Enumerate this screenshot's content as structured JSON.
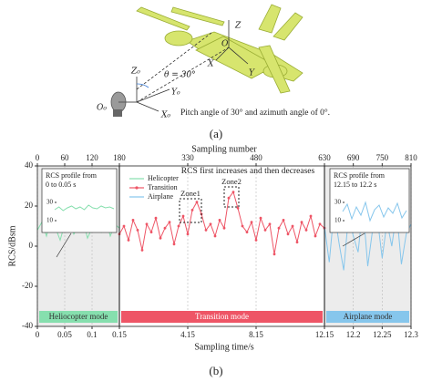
{
  "figure_a": {
    "labels": {
      "z": "Z",
      "o": "O",
      "x": "X",
      "y": "Y",
      "z0": "Z₀",
      "theta": "θ = 30°",
      "y0": "Y₀",
      "x0": "X₀",
      "o0": "O₀"
    },
    "description": "Pitch angle of 30° and azimuth angle of 0°.",
    "caption": "(a)"
  },
  "chart_data": {
    "type": "line",
    "xlabel": "Sampling number",
    "x2label": "Sampling time/s",
    "ylabel": "RCS/dBsm",
    "xlim": [
      0,
      810
    ],
    "xticks": [
      0,
      60,
      120,
      180,
      330,
      480,
      630,
      690,
      750,
      810
    ],
    "x2lim": [
      0,
      12.3
    ],
    "x2ticks": [
      0,
      0.05,
      0.1,
      0.15,
      4.15,
      8.15,
      12.15,
      12.2,
      12.25,
      12.3
    ],
    "ylim": [
      -40,
      40
    ],
    "yticks": [
      -40,
      -20,
      0,
      20,
      40
    ],
    "grid": true,
    "series": [
      {
        "name": "Helicopter",
        "color": "#86dfae",
        "x": [
          0,
          10,
          20,
          30,
          40,
          50,
          60,
          70,
          80,
          90,
          100,
          110,
          120,
          130,
          140,
          150,
          160,
          170,
          180
        ],
        "values": [
          8,
          12,
          5,
          14,
          9,
          3,
          11,
          15,
          6,
          10,
          13,
          4,
          9,
          12,
          7,
          14,
          5,
          11,
          9
        ]
      },
      {
        "name": "Transition",
        "color": "#ee5566",
        "markers": true,
        "x": [
          180,
          190,
          200,
          210,
          220,
          230,
          240,
          250,
          260,
          270,
          280,
          290,
          300,
          310,
          320,
          330,
          340,
          350,
          360,
          370,
          380,
          390,
          400,
          410,
          420,
          430,
          440,
          450,
          460,
          470,
          480,
          490,
          500,
          510,
          520,
          530,
          540,
          550,
          560,
          570,
          580,
          590,
          600,
          610,
          620,
          630
        ],
        "values": [
          6,
          10,
          3,
          13,
          8,
          -2,
          11,
          7,
          14,
          4,
          9,
          12,
          1,
          10,
          15,
          6,
          18,
          22,
          16,
          8,
          11,
          5,
          13,
          9,
          24,
          27,
          19,
          10,
          7,
          12,
          3,
          14,
          8,
          11,
          -4,
          9,
          13,
          6,
          10,
          2,
          12,
          8,
          15,
          5,
          11,
          9
        ]
      },
      {
        "name": "Airplane",
        "color": "#86c6ec",
        "x": [
          630,
          640,
          650,
          660,
          670,
          680,
          690,
          700,
          710,
          720,
          730,
          740,
          750,
          760,
          770,
          780,
          790,
          800,
          810
        ],
        "values": [
          10,
          -8,
          18,
          2,
          -12,
          15,
          5,
          -3,
          20,
          -10,
          8,
          14,
          -6,
          12,
          0,
          17,
          -9,
          6,
          11
        ]
      }
    ],
    "modes": [
      {
        "label": "Heliocopter mode"
      },
      {
        "label": "Transition mode"
      },
      {
        "label": "Airplane mode"
      }
    ],
    "insets": [
      {
        "title": [
          "RCS profile from",
          "0 to 0.05 s"
        ],
        "ylim": [
          0,
          40
        ],
        "yticks": [
          10,
          30
        ],
        "color": "#86dfae",
        "values": [
          22,
          25,
          21,
          24,
          26,
          23,
          25,
          22,
          27,
          24,
          23,
          26,
          24,
          25,
          23
        ]
      },
      {
        "title": [
          "RCS profile from",
          "12.15 to 12.2 s"
        ],
        "ylim": [
          0,
          40
        ],
        "yticks": [
          10,
          30
        ],
        "color": "#86c6ec",
        "values": [
          20,
          28,
          12,
          25,
          16,
          30,
          10,
          22,
          27,
          14,
          24,
          18,
          29,
          13,
          21
        ]
      }
    ],
    "annotations": {
      "trend": "RCS first increases and then decreases",
      "zone1": "Zone1",
      "zone2": "Zone2"
    }
  },
  "caption_b": "(b)"
}
